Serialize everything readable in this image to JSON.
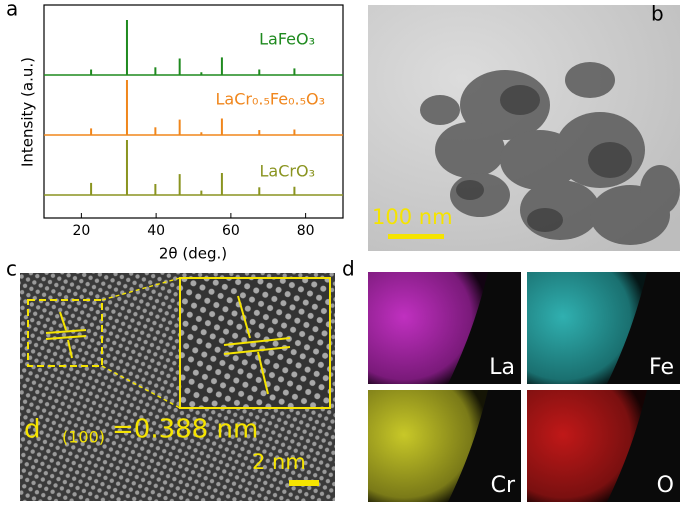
{
  "chart_data": {
    "type": "line",
    "panel_label": "a",
    "xlabel": "2θ (deg.)",
    "ylabel": "Intensity (a.u.)",
    "xlim": [
      10,
      90
    ],
    "xticks": [
      20,
      40,
      60,
      80
    ],
    "x": [
      22.6,
      32.2,
      39.8,
      46.3,
      52.1,
      57.6,
      67.6,
      77.0
    ],
    "series": [
      {
        "name": "LaFeO₃",
        "color": "#1f8a1f",
        "values": [
          10,
          100,
          14,
          30,
          5,
          32,
          10,
          12
        ]
      },
      {
        "name": "LaCr₀.₅Fe₀.₅O₃",
        "color": "#f0861c",
        "values": [
          12,
          100,
          14,
          28,
          5,
          30,
          9,
          10
        ]
      },
      {
        "name": "LaCrO₃",
        "color": "#8a9420",
        "values": [
          22,
          100,
          20,
          38,
          8,
          40,
          14,
          15
        ]
      }
    ]
  },
  "panels": {
    "b": {
      "label": "b",
      "scale_bar": "100 nm"
    },
    "c": {
      "label": "c",
      "d": "d",
      "plane": "(100)",
      "spacing": "=0.388 nm",
      "scale_bar": "2 nm"
    },
    "d": {
      "label": "d",
      "maps": [
        "La",
        "Fe",
        "Cr",
        "O"
      ]
    }
  }
}
